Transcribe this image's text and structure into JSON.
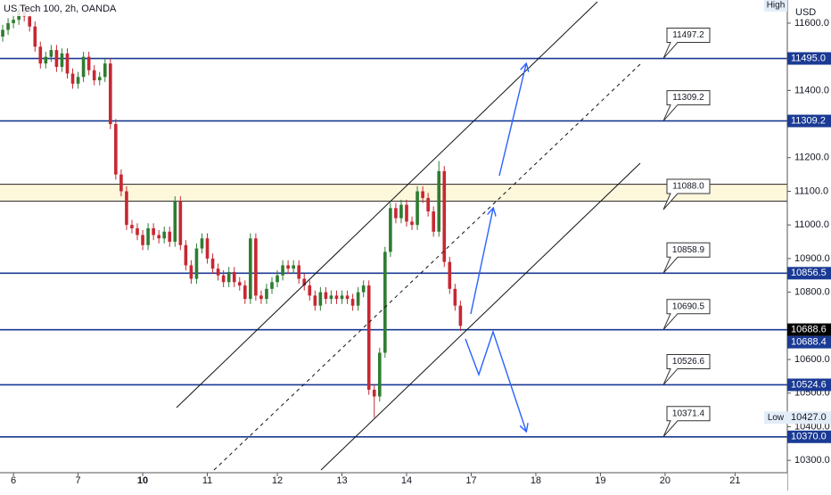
{
  "chart_data": {
    "type": "candlestick",
    "title": "US Tech 100, 2h, OANDA",
    "currency": "USD",
    "up_color": "#2e7d32",
    "down_color": "#c62833",
    "line_color": "#1a3a94",
    "band_color": "#fdf7dc",
    "open": [
      11560,
      11580,
      11600,
      11610,
      11640,
      11620,
      11590,
      11530,
      11480,
      11500,
      11520,
      11470,
      11510,
      11450,
      11420,
      11440,
      11500,
      11460,
      11430,
      11440,
      11480,
      11300,
      11150,
      11100,
      11000,
      10990,
      10970,
      10940,
      10990,
      10970,
      10960,
      10980,
      10950,
      11070,
      10940,
      10880,
      10840,
      10930,
      10960,
      10900,
      10870,
      10850,
      10830,
      10860,
      10830,
      10820,
      10780,
      10960,
      10790,
      10780,
      10810,
      10830,
      10850,
      10880,
      10870,
      10880,
      10840,
      10820,
      10790,
      10760,
      10800,
      10780,
      10790,
      10780,
      10790,
      10780,
      10760,
      10800,
      10820,
      10510,
      10490,
      10620,
      10920,
      11050,
      11020,
      11060,
      11010,
      11000,
      11100,
      11080,
      11040,
      10980,
      11160,
      10890,
      10810,
      10760
    ],
    "high": [
      11595,
      11615,
      11625,
      11655,
      11655,
      11635,
      11605,
      11545,
      11515,
      11535,
      11535,
      11525,
      11525,
      11465,
      11455,
      11515,
      11515,
      11475,
      11455,
      11495,
      11495,
      11315,
      11165,
      11115,
      11015,
      11005,
      10985,
      11005,
      11005,
      10985,
      10995,
      10995,
      11085,
      11085,
      10955,
      10895,
      10945,
      10975,
      10975,
      10915,
      10885,
      10865,
      10875,
      10875,
      10845,
      10835,
      10975,
      10975,
      10805,
      10825,
      10845,
      10865,
      10895,
      10895,
      10895,
      10895,
      10855,
      10835,
      10805,
      10815,
      10815,
      10805,
      10805,
      10805,
      10805,
      10795,
      10815,
      10835,
      10835,
      10525,
      10635,
      10935,
      11065,
      11065,
      11075,
      11075,
      11025,
      11115,
      11115,
      11095,
      11055,
      11190,
      11175,
      10905,
      10825,
      10775
    ],
    "low": [
      11545,
      11565,
      11585,
      11595,
      11605,
      11575,
      11515,
      11465,
      11465,
      11485,
      11455,
      11455,
      11435,
      11405,
      11405,
      11425,
      11445,
      11415,
      11415,
      11425,
      11285,
      11135,
      11085,
      10985,
      10975,
      10955,
      10925,
      10925,
      10955,
      10945,
      10945,
      10935,
      10935,
      10925,
      10865,
      10825,
      10825,
      10915,
      10885,
      10855,
      10835,
      10815,
      10815,
      10815,
      10805,
      10765,
      10765,
      10775,
      10765,
      10765,
      10795,
      10815,
      10835,
      10855,
      10855,
      10825,
      10805,
      10775,
      10745,
      10745,
      10765,
      10765,
      10765,
      10765,
      10765,
      10745,
      10745,
      10785,
      10495,
      10427,
      10475,
      10605,
      10905,
      11005,
      11005,
      10995,
      10985,
      10985,
      11065,
      11025,
      10965,
      10965,
      10875,
      10795,
      10745,
      10685
    ],
    "close": [
      11580,
      11600,
      11610,
      11640,
      11620,
      11590,
      11530,
      11480,
      11500,
      11520,
      11470,
      11510,
      11450,
      11420,
      11440,
      11500,
      11460,
      11430,
      11440,
      11480,
      11300,
      11150,
      11100,
      11000,
      10990,
      10970,
      10940,
      10990,
      10970,
      10960,
      10980,
      10950,
      11070,
      10940,
      10880,
      10840,
      10930,
      10960,
      10900,
      10870,
      10850,
      10830,
      10860,
      10830,
      10820,
      10780,
      10960,
      10790,
      10780,
      10810,
      10830,
      10850,
      10880,
      10870,
      10880,
      10840,
      10820,
      10790,
      10760,
      10800,
      10780,
      10790,
      10780,
      10790,
      10780,
      10760,
      10800,
      10820,
      10510,
      10490,
      10620,
      10920,
      11050,
      11020,
      11060,
      11010,
      11000,
      11100,
      11080,
      11040,
      10980,
      11160,
      10890,
      10810,
      10760,
      10700
    ],
    "xlim": [
      -0.5,
      145.7
    ],
    "xticks": [
      {
        "value": 2,
        "label": "6"
      },
      {
        "value": 14,
        "label": "7"
      },
      {
        "value": 26,
        "label": "10"
      },
      {
        "value": 38,
        "label": "11"
      },
      {
        "value": 51,
        "label": "12"
      },
      {
        "value": 63,
        "label": "13"
      },
      {
        "value": 75,
        "label": "14"
      },
      {
        "value": 87,
        "label": "17"
      },
      {
        "value": 99,
        "label": "18"
      },
      {
        "value": 111,
        "label": "19"
      },
      {
        "value": 123,
        "label": "20"
      },
      {
        "value": 136,
        "label": "21"
      }
    ],
    "ylim": [
      10263.3,
      11668.8
    ],
    "yticks": [
      {
        "value": 11600,
        "label": "11600.0"
      },
      {
        "value": 11400,
        "label": "11400.0"
      },
      {
        "value": 11200,
        "label": "11200.0"
      },
      {
        "value": 11100,
        "label": "11100.0"
      },
      {
        "value": 11000,
        "label": "11000.0"
      },
      {
        "value": 10900,
        "label": "10900.0"
      },
      {
        "value": 10800,
        "label": "10800.0"
      },
      {
        "value": 10600,
        "label": "10600.0"
      },
      {
        "value": 10500,
        "label": "10500.0"
      },
      {
        "value": 10400,
        "label": "10400.0"
      },
      {
        "value": 10300,
        "label": "10300.0"
      }
    ],
    "hlines": [
      {
        "value": 11495,
        "label": "11495.0",
        "callout": 11497.2
      },
      {
        "value": 11309.2,
        "label": "11309.2",
        "callout": 11309.2
      },
      {
        "value": 10856.5,
        "label": "10856.5",
        "callout": 10858.9
      },
      {
        "value": 10688.4,
        "label": "10688.4",
        "callout": 10690.5
      },
      {
        "value": 10524.6,
        "label": "10524.6",
        "callout": 10526.6
      },
      {
        "value": 10370,
        "label": "10370.0",
        "callout": 10371.4
      }
    ],
    "band": {
      "range": [
        11070.5,
        11120.8
      ],
      "callout": {
        "value": 11088,
        "label": "11088.0"
      }
    },
    "last_price": {
      "value": 10688.6,
      "label": "10688.6"
    },
    "high_label": "High",
    "low_label": "Low",
    "low_value": {
      "value": 10427,
      "label": "10427.0"
    }
  }
}
